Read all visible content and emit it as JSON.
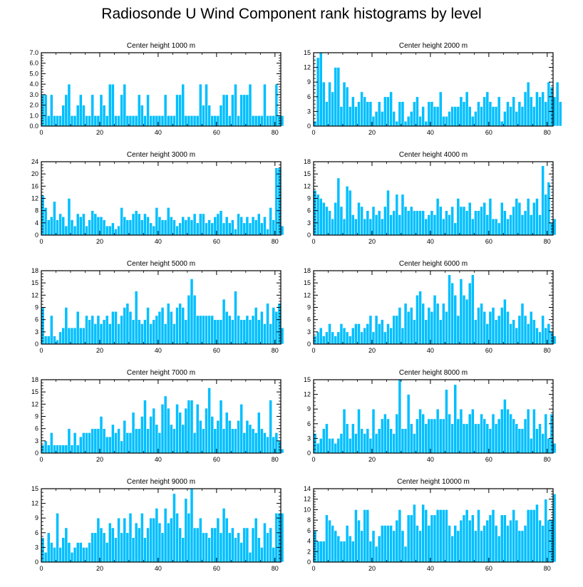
{
  "figure": {
    "title": "Radiosonde U Wind Component rank histograms by level",
    "bar_color": "#00BFFF",
    "bar_edge_color": "#ffffff"
  },
  "chart_data": [
    {
      "type": "bar",
      "title": "Center height 1000 m",
      "xlim": [
        0,
        82
      ],
      "ylim": [
        0,
        7
      ],
      "yticks": [
        0.0,
        1.0,
        2.0,
        3.0,
        4.0,
        5.0,
        6.0,
        7.0
      ],
      "ytick_labels": [
        "0.0",
        "1.0",
        "2.0",
        "3.0",
        "4.0",
        "5.0",
        "6.0",
        "7.0"
      ],
      "xticks": [
        0,
        20,
        40,
        60,
        80
      ],
      "values": [
        3,
        3,
        1,
        3,
        1,
        1,
        1,
        2,
        3,
        4,
        1,
        1,
        2,
        3,
        2,
        1,
        1,
        3,
        1,
        1,
        3,
        2,
        1,
        4,
        4,
        1,
        1,
        3,
        4,
        1,
        1,
        1,
        1,
        3,
        2,
        1,
        3,
        1,
        1,
        1,
        1,
        1,
        3,
        1,
        1,
        1,
        3,
        3,
        4,
        1,
        1,
        1,
        1,
        1,
        4,
        2,
        4,
        2,
        1,
        1,
        1,
        2,
        3,
        3,
        1,
        3,
        4,
        1,
        3,
        3,
        3,
        4,
        1,
        1,
        1,
        1,
        4,
        1,
        1,
        1,
        4,
        1,
        1
      ]
    },
    {
      "type": "bar",
      "title": "Center height 2000 m",
      "xlim": [
        0,
        82
      ],
      "ylim": [
        0,
        15
      ],
      "yticks": [
        0,
        3,
        6,
        9,
        12,
        15
      ],
      "ytick_labels": [
        "0",
        "3",
        "6",
        "9",
        "12",
        "15"
      ],
      "xticks": [
        0,
        20,
        40,
        60,
        80
      ],
      "values": [
        1,
        14,
        15,
        9,
        5,
        9,
        7,
        12,
        12,
        4,
        9,
        8,
        4,
        6,
        4,
        5,
        7,
        6,
        5,
        5,
        2,
        3,
        5,
        3,
        6,
        6,
        7,
        3,
        1,
        5,
        5,
        1,
        2,
        3,
        5,
        6,
        2,
        4,
        1,
        5,
        5,
        4,
        4,
        7,
        2,
        2,
        3,
        4,
        4,
        4,
        6,
        5,
        7,
        4,
        2,
        3,
        5,
        4,
        6,
        7,
        5,
        4,
        4,
        6,
        1,
        3,
        5,
        4,
        6,
        3,
        5,
        4,
        7,
        9,
        6,
        4,
        7,
        6,
        7,
        5,
        9,
        8,
        6,
        9,
        5
      ]
    },
    {
      "type": "bar",
      "title": "Center height 3000 m",
      "xlim": [
        0,
        82
      ],
      "ylim": [
        0,
        24
      ],
      "yticks": [
        0,
        4,
        8,
        12,
        16,
        20,
        24
      ],
      "ytick_labels": [
        "0",
        "4",
        "8",
        "12",
        "16",
        "20",
        "24"
      ],
      "xticks": [
        0,
        20,
        40,
        60,
        80
      ],
      "values": [
        13,
        9,
        5,
        6,
        11,
        5,
        7,
        6,
        3,
        12,
        5,
        3,
        7,
        6,
        7,
        3,
        5,
        8,
        7,
        6,
        6,
        5,
        3,
        3,
        4,
        2,
        3,
        9,
        6,
        5,
        5,
        7,
        8,
        7,
        5,
        7,
        6,
        4,
        3,
        9,
        6,
        5,
        5,
        9,
        6,
        5,
        3,
        4,
        6,
        5,
        6,
        5,
        7,
        4,
        7,
        7,
        4,
        5,
        4,
        6,
        7,
        8,
        4,
        6,
        4,
        5,
        2,
        7,
        6,
        4,
        6,
        4,
        6,
        5,
        7,
        4,
        6,
        2,
        9,
        5,
        22,
        22,
        3
      ]
    },
    {
      "type": "bar",
      "title": "Center height 4000 m",
      "xlim": [
        0,
        82
      ],
      "ylim": [
        0,
        18
      ],
      "yticks": [
        0,
        3,
        6,
        9,
        12,
        15,
        18
      ],
      "ytick_labels": [
        "0",
        "3",
        "6",
        "9",
        "12",
        "15",
        "18"
      ],
      "xticks": [
        0,
        20,
        40,
        60,
        80
      ],
      "values": [
        11,
        10,
        9,
        8,
        7,
        6,
        4,
        8,
        14,
        7,
        4,
        12,
        11,
        5,
        4,
        8,
        7,
        4,
        6,
        4,
        7,
        5,
        6,
        4,
        7,
        11,
        5,
        6,
        10,
        5,
        10,
        7,
        6,
        7,
        6,
        6,
        6,
        6,
        4,
        5,
        6,
        5,
        9,
        7,
        4,
        6,
        5,
        7,
        3,
        9,
        7,
        7,
        6,
        8,
        4,
        6,
        6,
        7,
        8,
        5,
        9,
        4,
        4,
        3,
        8,
        6,
        4,
        5,
        7,
        9,
        8,
        5,
        6,
        9,
        5,
        8,
        9,
        5,
        17,
        10,
        13,
        3,
        4
      ]
    },
    {
      "type": "bar",
      "title": "Center height 5000 m",
      "xlim": [
        0,
        82
      ],
      "ylim": [
        0,
        18
      ],
      "yticks": [
        0,
        3,
        6,
        9,
        12,
        15,
        18
      ],
      "ytick_labels": [
        "0",
        "3",
        "6",
        "9",
        "12",
        "15",
        "18"
      ],
      "xticks": [
        0,
        20,
        40,
        60,
        80
      ],
      "values": [
        9,
        2,
        2,
        7,
        2,
        1,
        3,
        4,
        9,
        4,
        4,
        4,
        8,
        4,
        4,
        7,
        6,
        7,
        5,
        7,
        5,
        6,
        7,
        5,
        8,
        8,
        5,
        7,
        9,
        10,
        8,
        6,
        13,
        6,
        5,
        6,
        9,
        5,
        6,
        7,
        8,
        9,
        5,
        10,
        8,
        5,
        9,
        10,
        9,
        6,
        12,
        16,
        12,
        7,
        7,
        7,
        7,
        7,
        7,
        6,
        6,
        6,
        11,
        8,
        7,
        6,
        13,
        7,
        6,
        6,
        7,
        6,
        7,
        9,
        6,
        8,
        5,
        10,
        5,
        9,
        8,
        10,
        4
      ]
    },
    {
      "type": "bar",
      "title": "Center height 6000 m",
      "xlim": [
        0,
        82
      ],
      "ylim": [
        0,
        18
      ],
      "yticks": [
        0,
        3,
        6,
        9,
        12,
        15,
        18
      ],
      "ytick_labels": [
        "0",
        "3",
        "6",
        "9",
        "12",
        "15",
        "18"
      ],
      "xticks": [
        0,
        20,
        40,
        60,
        80
      ],
      "values": [
        2,
        3,
        4,
        2,
        3,
        5,
        3,
        2,
        3,
        5,
        4,
        3,
        2,
        4,
        5,
        5,
        3,
        4,
        5,
        7,
        3,
        7,
        5,
        6,
        3,
        5,
        4,
        7,
        7,
        9,
        4,
        10,
        8,
        9,
        6,
        12,
        13,
        10,
        6,
        9,
        8,
        12,
        10,
        6,
        10,
        8,
        17,
        15,
        12,
        7,
        16,
        12,
        11,
        15,
        17,
        6,
        9,
        10,
        8,
        5,
        8,
        9,
        6,
        7,
        9,
        11,
        8,
        5,
        6,
        4,
        7,
        10,
        7,
        5,
        8,
        6,
        4,
        3,
        7,
        4,
        5,
        3,
        2
      ]
    },
    {
      "type": "bar",
      "title": "Center height 7000 m",
      "xlim": [
        0,
        82
      ],
      "ylim": [
        0,
        18
      ],
      "yticks": [
        0,
        3,
        6,
        9,
        12,
        15,
        18
      ],
      "ytick_labels": [
        "0",
        "3",
        "6",
        "9",
        "12",
        "15",
        "18"
      ],
      "xticks": [
        0,
        20,
        40,
        60,
        80
      ],
      "values": [
        2,
        3,
        2,
        5,
        2,
        2,
        2,
        2,
        2,
        6,
        2,
        5,
        2,
        4,
        5,
        5,
        5,
        6,
        6,
        6,
        9,
        6,
        4,
        4,
        7,
        5,
        6,
        3,
        8,
        5,
        5,
        10,
        6,
        6,
        9,
        13,
        6,
        9,
        11,
        7,
        5,
        12,
        14,
        11,
        7,
        6,
        12,
        10,
        7,
        11,
        13,
        13,
        5,
        12,
        8,
        6,
        11,
        16,
        9,
        6,
        8,
        13,
        6,
        10,
        8,
        6,
        6,
        8,
        12,
        5,
        8,
        7,
        6,
        5,
        10,
        6,
        5,
        4,
        13,
        4,
        5,
        3,
        1
      ]
    },
    {
      "type": "bar",
      "title": "Center height 8000 m",
      "xlim": [
        0,
        82
      ],
      "ylim": [
        0,
        15
      ],
      "yticks": [
        0,
        3,
        6,
        9,
        12,
        15
      ],
      "ytick_labels": [
        "0",
        "3",
        "6",
        "9",
        "12",
        "15"
      ],
      "xticks": [
        0,
        20,
        40,
        60,
        80
      ],
      "values": [
        4,
        2,
        3,
        5,
        6,
        3,
        3,
        2,
        3,
        4,
        9,
        6,
        3,
        6,
        4,
        9,
        5,
        4,
        5,
        3,
        9,
        4,
        5,
        7,
        8,
        7,
        5,
        4,
        8,
        15,
        5,
        5,
        12,
        6,
        4,
        7,
        9,
        8,
        6,
        7,
        7,
        7,
        9,
        7,
        7,
        13,
        8,
        6,
        14,
        7,
        9,
        6,
        6,
        8,
        9,
        6,
        6,
        8,
        7,
        6,
        5,
        8,
        6,
        7,
        9,
        11,
        9,
        8,
        7,
        6,
        5,
        5,
        7,
        9,
        3,
        9,
        5,
        6,
        4,
        8,
        3,
        8,
        2
      ]
    },
    {
      "type": "bar",
      "title": "Center height 9000 m",
      "xlim": [
        0,
        82
      ],
      "ylim": [
        0,
        15
      ],
      "yticks": [
        0,
        3,
        6,
        9,
        12,
        15
      ],
      "ytick_labels": [
        "0",
        "3",
        "6",
        "9",
        "12",
        "15"
      ],
      "xticks": [
        0,
        20,
        40,
        60,
        80
      ],
      "values": [
        5,
        2,
        6,
        4,
        3,
        10,
        3,
        5,
        7,
        4,
        2,
        3,
        4,
        4,
        3,
        3,
        4,
        6,
        6,
        9,
        7,
        6,
        4,
        8,
        7,
        5,
        9,
        6,
        9,
        6,
        10,
        5,
        8,
        7,
        10,
        5,
        7,
        9,
        9,
        11,
        8,
        6,
        11,
        8,
        9,
        14,
        10,
        7,
        5,
        13,
        10,
        15,
        7,
        7,
        9,
        6,
        6,
        5,
        7,
        7,
        9,
        6,
        11,
        9,
        6,
        7,
        5,
        6,
        4,
        7,
        7,
        2,
        7,
        9,
        5,
        3,
        8,
        6,
        7,
        3,
        10,
        10,
        10
      ]
    },
    {
      "type": "bar",
      "title": "Center height 10000 m",
      "xlim": [
        0,
        82
      ],
      "ylim": [
        0,
        14
      ],
      "yticks": [
        0,
        2,
        4,
        6,
        8,
        10,
        12,
        14
      ],
      "ytick_labels": [
        "0",
        "2",
        "4",
        "6",
        "8",
        "10",
        "12",
        "14"
      ],
      "xticks": [
        0,
        20,
        40,
        60,
        80
      ],
      "values": [
        6,
        4,
        4,
        4,
        9,
        8,
        7,
        6,
        5,
        4,
        4,
        7,
        5,
        4,
        10,
        8,
        6,
        10,
        10,
        4,
        6,
        3,
        5,
        7,
        7,
        7,
        7,
        6,
        8,
        10,
        6,
        3,
        9,
        9,
        11,
        7,
        6,
        11,
        10,
        7,
        9,
        9,
        10,
        10,
        10,
        10,
        7,
        5,
        7,
        6,
        8,
        9,
        10,
        8,
        9,
        6,
        10,
        6,
        7,
        8,
        9,
        10,
        7,
        5,
        9,
        9,
        7,
        8,
        10,
        8,
        6,
        6,
        7,
        10,
        10,
        10,
        11,
        8,
        7,
        12,
        8,
        8,
        13
      ]
    }
  ]
}
